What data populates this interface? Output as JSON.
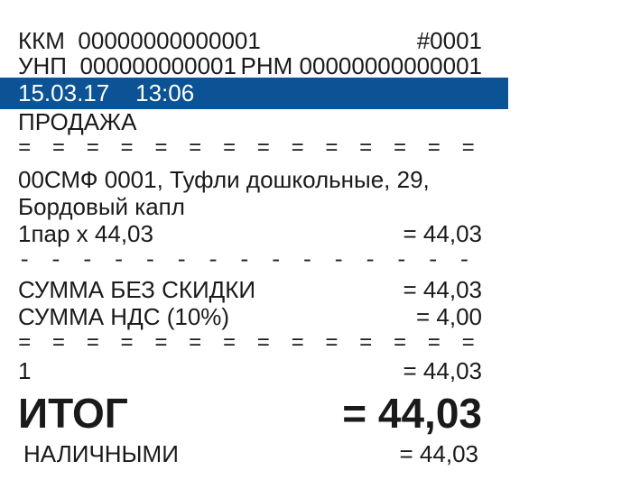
{
  "header": {
    "kkm_label": "ККМ",
    "kkm_number": "00000000000001",
    "doc_number": "#0001",
    "unp_label": "УНП",
    "unp_number": "000000000001",
    "rnm_label": "РНМ",
    "rnm_number": "00000000000001",
    "date": "15.03.17",
    "time": "13:06"
  },
  "operation": "ПРОДАЖА",
  "separators": {
    "double": "= = = = = = = = = = = = = = = = = = = = = = =",
    "dash": "- - - - - - - - - - - - - - - - - - - - - - - - - - - - - - -"
  },
  "item": {
    "line1": "00СМФ  0001, Туфли дошкольные, 29,",
    "line2": "Бордовый капл",
    "qty_price": "1пар х 44,03",
    "amount": "= 44,03"
  },
  "summary": {
    "subtotal_label": "СУММА БЕЗ СКИДКИ",
    "subtotal_value": "= 44,03",
    "vat_label": "СУММА НДС (10%)",
    "vat_value": "= 4,00"
  },
  "section": {
    "number": "1",
    "value": "= 44,03"
  },
  "total": {
    "label": "ИТОГ",
    "value": "= 44,03"
  },
  "payment": {
    "label": "НАЛИЧНЫМИ",
    "value": "= 44,03"
  },
  "colors": {
    "highlight": "#0b5394",
    "text": "#1a1a1a"
  }
}
